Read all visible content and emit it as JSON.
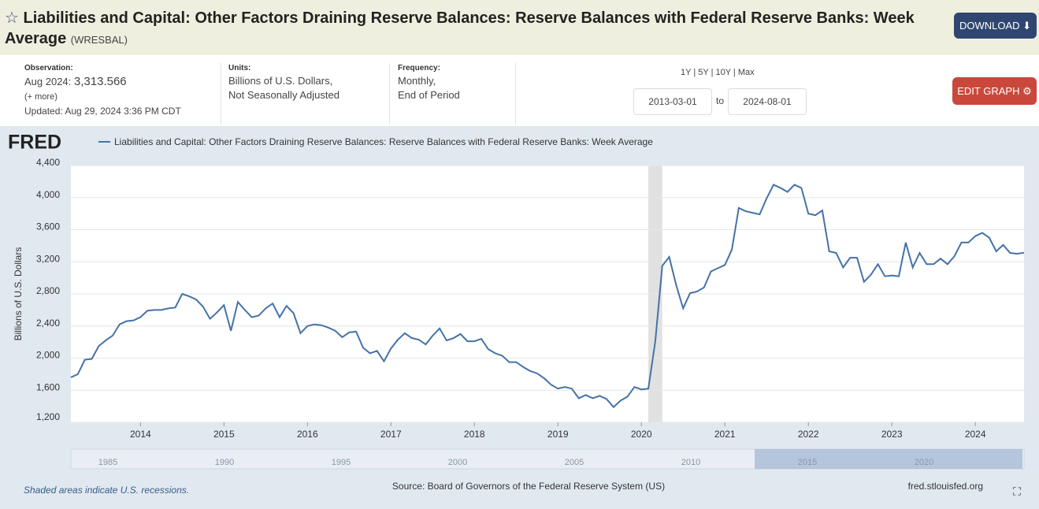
{
  "header": {
    "title": "Liabilities and Capital: Other Factors Draining Reserve Balances: Reserve Balances with Federal Reserve Banks: Week Average",
    "series_id": "(WRESBAL)",
    "download": "DOWNLOAD"
  },
  "info": {
    "observation_label": "Observation:",
    "observation_date": "Aug 2024:",
    "observation_value": "3,313.566",
    "more": "(+ more)",
    "updated": "Updated: Aug 29, 2024 3:36 PM CDT",
    "units_label": "Units:",
    "units": [
      "Billions of U.S. Dollars,",
      "Not Seasonally Adjusted"
    ],
    "frequency_label": "Frequency:",
    "frequency": [
      "Monthly,",
      "End of Period"
    ],
    "ranges": [
      "1Y",
      "5Y",
      "10Y",
      "Max"
    ],
    "date_from": "2013-03-01",
    "to": "to",
    "date_to": "2024-08-01",
    "edit": "EDIT GRAPH"
  },
  "chart_data": {
    "type": "line",
    "logo": "FRED",
    "ylabel": "Billions of U.S. Dollars",
    "xlim": [
      "2013-03-01",
      "2024-08-01"
    ],
    "xticks": [
      2014,
      2015,
      2016,
      2017,
      2018,
      2019,
      2020,
      2021,
      2022,
      2023,
      2024
    ],
    "ylim": [
      1200,
      4400
    ],
    "yticks": [
      {
        "value": 1200,
        "label": "1,200"
      },
      {
        "value": 1600,
        "label": "1,600"
      },
      {
        "value": 2000,
        "label": "2,000"
      },
      {
        "value": 2400,
        "label": "2,400"
      },
      {
        "value": 2800,
        "label": "2,800"
      },
      {
        "value": 3200,
        "label": "3,200"
      },
      {
        "value": 3600,
        "label": "3,600"
      },
      {
        "value": 4000,
        "label": "4,000"
      },
      {
        "value": 4400,
        "label": "4,400"
      }
    ],
    "grid": true,
    "recessions": [
      [
        "2020-02-01",
        "2020-04-01"
      ]
    ],
    "series": [
      {
        "name": "Liabilities and Capital: Other Factors Draining Reserve Balances: Reserve Balances with Federal Reserve Banks: Week Average",
        "color": "#4572a7",
        "values": [
          1760,
          1800,
          1980,
          1990,
          2150,
          2220,
          2280,
          2420,
          2460,
          2470,
          2510,
          2590,
          2600,
          2600,
          2620,
          2630,
          2800,
          2770,
          2730,
          2640,
          2490,
          2570,
          2660,
          2340,
          2700,
          2600,
          2510,
          2530,
          2620,
          2680,
          2510,
          2650,
          2560,
          2310,
          2400,
          2420,
          2410,
          2380,
          2340,
          2260,
          2320,
          2330,
          2130,
          2060,
          2090,
          1960,
          2120,
          2230,
          2310,
          2250,
          2230,
          2170,
          2280,
          2370,
          2220,
          2250,
          2300,
          2210,
          2210,
          2240,
          2110,
          2060,
          2030,
          1950,
          1950,
          1890,
          1840,
          1810,
          1750,
          1670,
          1620,
          1640,
          1620,
          1500,
          1540,
          1500,
          1530,
          1490,
          1390,
          1470,
          1520,
          1640,
          1610,
          1620,
          2210,
          3150,
          3260,
          2910,
          2620,
          2810,
          2830,
          2880,
          3080,
          3120,
          3160,
          3350,
          3870,
          3830,
          3810,
          3790,
          3990,
          4160,
          4120,
          4070,
          4160,
          4120,
          3800,
          3780,
          3840,
          3330,
          3310,
          3130,
          3250,
          3250,
          2950,
          3040,
          3170,
          3020,
          3030,
          3020,
          3440,
          3130,
          3310,
          3170,
          3170,
          3240,
          3170,
          3270,
          3440,
          3440,
          3520,
          3560,
          3500,
          3330,
          3410,
          3310,
          3300,
          3313.566
        ]
      }
    ],
    "navigator_ticks": [
      "1985",
      "1990",
      "1995",
      "2000",
      "2005",
      "2010",
      "2015",
      "2020"
    ],
    "note": "Shaded areas indicate U.S. recessions.",
    "source": "Source: Board of Governors of the Federal Reserve System (US)",
    "site": "fred.stlouisfed.org"
  }
}
